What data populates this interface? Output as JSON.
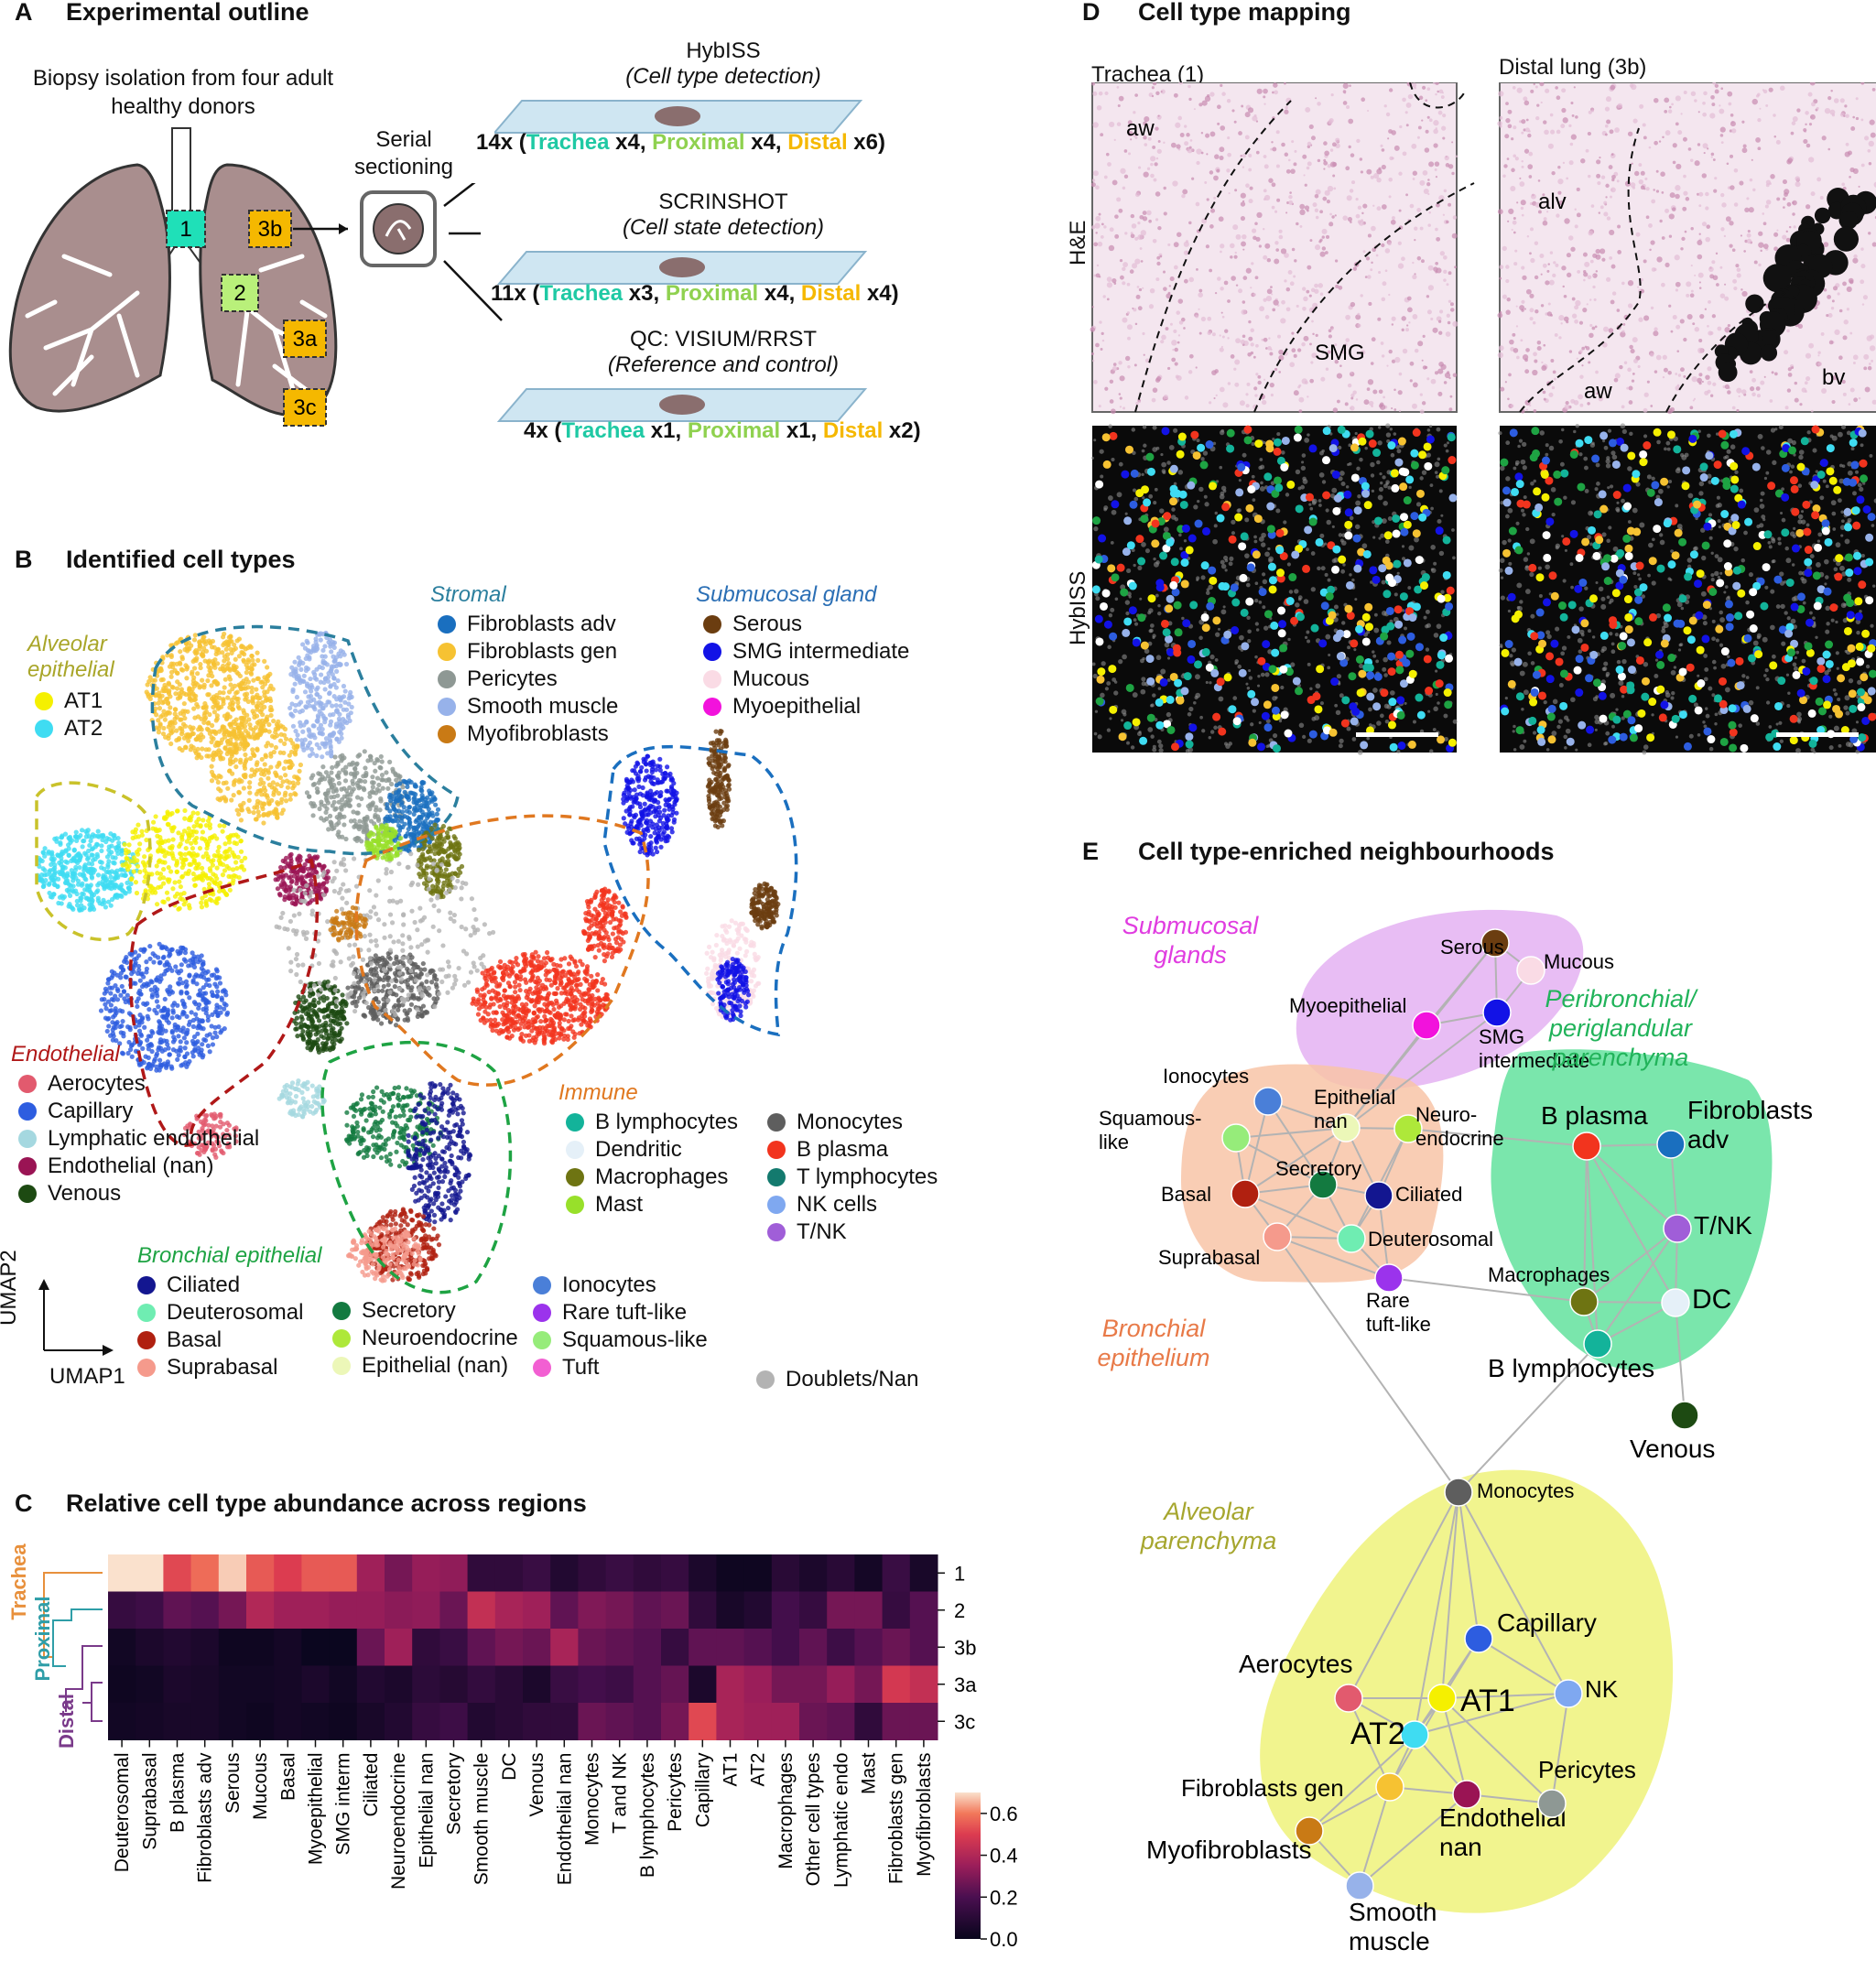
{
  "panelA": {
    "letter": "A",
    "title": "Experimental outline",
    "biopsy": [
      "Biopsy isolation from four adult",
      "healthy donors"
    ],
    "serial": [
      "Serial",
      "sectioning"
    ],
    "regions": [
      "1",
      "3b",
      "2",
      "3a",
      "3c"
    ],
    "methods": [
      {
        "name": "HybISS",
        "sub": "(Cell type detection)",
        "count": "14x",
        "parts": [
          [
            "(",
            ""
          ],
          [
            "Trachea",
            "trachea"
          ],
          [
            " x4, ",
            ""
          ],
          [
            "Proximal",
            "proximal"
          ],
          [
            " x4, ",
            ""
          ],
          [
            "Distal",
            "distal"
          ],
          [
            " x6)",
            ""
          ]
        ]
      },
      {
        "name": "SCRINSHOT",
        "sub": "(Cell state detection)",
        "count": "11x",
        "parts": [
          [
            "(",
            ""
          ],
          [
            "Trachea",
            "trachea"
          ],
          [
            " x3, ",
            ""
          ],
          [
            "Proximal",
            "proximal"
          ],
          [
            " x4, ",
            ""
          ],
          [
            "Distal",
            "distal"
          ],
          [
            " x4)",
            ""
          ]
        ]
      },
      {
        "name": "QC: VISIUM/RRST",
        "sub": "(Reference and control)",
        "count": "4x",
        "parts": [
          [
            "(",
            ""
          ],
          [
            "Trachea",
            "trachea"
          ],
          [
            " x1, ",
            ""
          ],
          [
            "Proximal",
            "proximal"
          ],
          [
            " x1, ",
            ""
          ],
          [
            "Distal",
            "distal"
          ],
          [
            " x2)",
            ""
          ]
        ]
      }
    ]
  },
  "colors": {
    "trachea": "#1fc9a4",
    "proximal": "#8fd14f",
    "distal": "#f5b800"
  },
  "panelB": {
    "letter": "B",
    "title": "Identified cell types",
    "axes": {
      "y": "UMAP2",
      "x": "UMAP1"
    },
    "groups": [
      {
        "title": [
          "Alveolar",
          "epithelial"
        ],
        "color": "#a9a62a",
        "items": [
          [
            "AT1",
            "#f5f000"
          ],
          [
            "AT2",
            "#3fdcf2"
          ]
        ]
      },
      {
        "title": [
          "Stromal"
        ],
        "color": "#2b7f9e",
        "items": [
          [
            "Fibroblasts adv",
            "#1a6fbf"
          ],
          [
            "Fibroblasts gen",
            "#f6c232"
          ],
          [
            "Pericytes",
            "#8e9894"
          ],
          [
            "Smooth muscle",
            "#97b2ea"
          ],
          [
            "Myofibroblasts",
            "#c97a15"
          ]
        ]
      },
      {
        "title": [
          "Submucosal gland"
        ],
        "color": "#2b6fb5",
        "items": [
          [
            "Serous",
            "#6b3d10"
          ],
          [
            "SMG intermediate",
            "#1212e6"
          ],
          [
            "Mucous",
            "#fadbe5"
          ],
          [
            "Myoepithelial",
            "#f212dc"
          ]
        ]
      },
      {
        "title": [
          "Endothelial"
        ],
        "color": "#b01818",
        "items": [
          [
            "Aerocytes",
            "#e25a6e"
          ],
          [
            "Capillary",
            "#2d5de0"
          ],
          [
            "Lymphatic endothelial",
            "#a5d8e0"
          ],
          [
            "Endothelial (nan)",
            "#9a1454"
          ],
          [
            "Venous",
            "#1d4a12"
          ]
        ]
      },
      {
        "title": [
          "Immune"
        ],
        "color": "#e07820",
        "items": [
          [
            "B lymphocytes",
            "#13b39a"
          ],
          [
            "Dendritic",
            "#e5f0f8"
          ],
          [
            "Macrophages",
            "#6e7412"
          ],
          [
            "Mast",
            "#98e02a"
          ],
          [
            "Monocytes",
            "#5e5e5e"
          ],
          [
            "B plasma",
            "#f2341e"
          ],
          [
            "T lymphocytes",
            "#137a6e"
          ],
          [
            "NK cells",
            "#7fa8f0"
          ],
          [
            "T/NK",
            "#a05ed8"
          ]
        ]
      },
      {
        "title": [
          "Bronchial epithelial"
        ],
        "color": "#1ea343",
        "items": [
          [
            "Ciliated",
            "#131690"
          ],
          [
            "Deuterosomal",
            "#6fedb2"
          ],
          [
            "Basal",
            "#b02010"
          ],
          [
            "Suprabasal",
            "#f59a8c"
          ],
          [
            "Secretory",
            "#137a40"
          ],
          [
            "Neuroendocrine",
            "#aee83a"
          ],
          [
            "Epithelial (nan)",
            "#ecf7b8"
          ],
          [
            "Ionocytes",
            "#4a7fd8"
          ],
          [
            "Rare tuft-like",
            "#9b33ec"
          ],
          [
            "Squamous-like",
            "#96ec7a"
          ],
          [
            "Tuft",
            "#f25fd2"
          ]
        ]
      }
    ],
    "doublets": [
      "Doublets/Nan",
      "#b3b3b3"
    ]
  },
  "panelC": {
    "letter": "C",
    "title": "Relative cell type abundance across regions",
    "chart_data": {
      "type": "heatmap",
      "columns": [
        "Deuterosomal",
        "Suprabasal",
        "B plasma",
        "Fibroblasts adv",
        "Serous",
        "Mucous",
        "Basal",
        "Myoepithelial",
        "SMG interm",
        "Ciliated",
        "Neuroendocrine",
        "Epithelial nan",
        "Secretory",
        "Smooth muscle",
        "DC",
        "Venous",
        "Endothelial nan",
        "Monocytes",
        "T and NK",
        "B lymphocytes",
        "Pericytes",
        "Capillary",
        "AT1",
        "AT2",
        "Macrophages",
        "Other cell types",
        "Lymphatic endo",
        "Mast",
        "Fibroblasts gen",
        "Myofibroblasts"
      ],
      "rows": [
        "1",
        "2",
        "3b",
        "3a",
        "3c"
      ],
      "values": [
        [
          0.7,
          0.7,
          0.52,
          0.58,
          0.68,
          0.55,
          0.5,
          0.55,
          0.55,
          0.36,
          0.28,
          0.34,
          0.33,
          0.12,
          0.12,
          0.15,
          0.08,
          0.12,
          0.15,
          0.12,
          0.14,
          0.06,
          0.02,
          0.02,
          0.1,
          0.06,
          0.1,
          0.04,
          0.15,
          0.05
        ],
        [
          0.14,
          0.16,
          0.24,
          0.22,
          0.28,
          0.4,
          0.36,
          0.36,
          0.34,
          0.34,
          0.32,
          0.33,
          0.26,
          0.44,
          0.38,
          0.36,
          0.24,
          0.3,
          0.28,
          0.24,
          0.26,
          0.12,
          0.05,
          0.08,
          0.18,
          0.14,
          0.28,
          0.28,
          0.14,
          0.22
        ],
        [
          0.03,
          0.06,
          0.08,
          0.06,
          0.02,
          0.02,
          0.04,
          0.01,
          0.01,
          0.26,
          0.36,
          0.12,
          0.15,
          0.24,
          0.28,
          0.26,
          0.38,
          0.26,
          0.24,
          0.22,
          0.14,
          0.24,
          0.24,
          0.22,
          0.18,
          0.24,
          0.16,
          0.22,
          0.26,
          0.22
        ],
        [
          0.02,
          0.03,
          0.06,
          0.05,
          0.03,
          0.03,
          0.04,
          0.06,
          0.03,
          0.08,
          0.06,
          0.11,
          0.09,
          0.13,
          0.1,
          0.06,
          0.15,
          0.18,
          0.16,
          0.22,
          0.25,
          0.06,
          0.38,
          0.35,
          0.28,
          0.28,
          0.34,
          0.28,
          0.48,
          0.44
        ],
        [
          0.03,
          0.04,
          0.05,
          0.05,
          0.03,
          0.02,
          0.04,
          0.03,
          0.02,
          0.05,
          0.08,
          0.14,
          0.16,
          0.08,
          0.1,
          0.12,
          0.12,
          0.26,
          0.24,
          0.22,
          0.28,
          0.52,
          0.38,
          0.36,
          0.36,
          0.26,
          0.24,
          0.12,
          0.26,
          0.26
        ]
      ],
      "row_groups": [
        [
          "Trachea",
          "#e8903c"
        ],
        [
          "Proximal",
          "#2f9ea8"
        ],
        [
          "Distal",
          "#7a3a8a"
        ]
      ],
      "colorbar": {
        "ticks": [
          "0.6",
          "0.4",
          "0.2",
          "0.0"
        ],
        "range": [
          0,
          0.7
        ]
      }
    }
  },
  "panelD": {
    "letter": "D",
    "title": "Cell type mapping",
    "cols": [
      "Trachea (1)",
      "Distal lung (3b)"
    ],
    "rows": [
      "H&E",
      "HybISS"
    ],
    "annotations": [
      "aw",
      "SMG",
      "alv",
      "aw",
      "bv"
    ]
  },
  "panelE": {
    "letter": "E",
    "title": "Cell type-enriched neighbourhoods",
    "regions": [
      {
        "label": [
          "Submucosal",
          "glands"
        ],
        "fill": "#e4b1f2",
        "text": "#e03ce0"
      },
      {
        "label": [
          "Peribronchial/",
          "periglandular",
          "parenchyma"
        ],
        "fill": "#63e29d",
        "text": "#21b35a"
      },
      {
        "label": [
          "Bronchial",
          "epithelium"
        ],
        "fill": "#f8c4a7",
        "text": "#e87a48"
      },
      {
        "label": [
          "Alveolar",
          "parenchyma"
        ],
        "fill": "#eef27a",
        "text": "#a6a62e"
      }
    ],
    "nodes": [
      {
        "id": "serous",
        "label": [
          "Serous"
        ],
        "color": "#6b3d10"
      },
      {
        "id": "mucous",
        "label": [
          "Mucous"
        ],
        "color": "#fadbe5"
      },
      {
        "id": "myo",
        "label": [
          "Myoepithelial"
        ],
        "color": "#f212dc"
      },
      {
        "id": "smg",
        "label": [
          "SMG",
          "intermediate"
        ],
        "color": "#1212e6"
      },
      {
        "id": "iono",
        "label": [
          "Ionocytes"
        ],
        "color": "#4a7fd8"
      },
      {
        "id": "epinan",
        "label": [
          "Epithelial",
          "nan"
        ],
        "color": "#ecf7b8"
      },
      {
        "id": "squam",
        "label": [
          "Squamous-",
          "like"
        ],
        "color": "#96ec7a"
      },
      {
        "id": "neuro",
        "label": [
          "Neuro-",
          "endocrine"
        ],
        "color": "#aee83a"
      },
      {
        "id": "secr",
        "label": [
          "Secretory"
        ],
        "color": "#137a40"
      },
      {
        "id": "cil",
        "label": [
          "Ciliated"
        ],
        "color": "#131690"
      },
      {
        "id": "basal",
        "label": [
          "Basal"
        ],
        "color": "#b02010"
      },
      {
        "id": "deut",
        "label": [
          "Deuterosomal"
        ],
        "color": "#6fedb2"
      },
      {
        "id": "supra",
        "label": [
          "Suprabasal"
        ],
        "color": "#f59a8c"
      },
      {
        "id": "tuft",
        "label": [
          "Rare",
          "tuft-like"
        ],
        "color": "#9b33ec"
      },
      {
        "id": "bplas",
        "label": [
          "B plasma"
        ],
        "color": "#f2341e"
      },
      {
        "id": "fibadv",
        "label": [
          "Fibroblasts",
          "adv"
        ],
        "color": "#1a6fbf"
      },
      {
        "id": "tnk",
        "label": [
          "T/NK"
        ],
        "color": "#a05ed8"
      },
      {
        "id": "mac",
        "label": [
          "Macrophages"
        ],
        "color": "#6e7412"
      },
      {
        "id": "dc",
        "label": [
          "DC"
        ],
        "color": "#e5f0f8"
      },
      {
        "id": "blym",
        "label": [
          "B lymphocytes"
        ],
        "color": "#13b39a"
      },
      {
        "id": "ven",
        "label": [
          "Venous"
        ],
        "color": "#1d4a12"
      },
      {
        "id": "mono",
        "label": [
          "Monocytes"
        ],
        "color": "#5e5e5e"
      },
      {
        "id": "cap",
        "label": [
          "Capillary"
        ],
        "color": "#2d5de0"
      },
      {
        "id": "aero",
        "label": [
          "Aerocytes"
        ],
        "color": "#e25a6e"
      },
      {
        "id": "at1",
        "label": [
          "AT1"
        ],
        "color": "#f5f000"
      },
      {
        "id": "nk",
        "label": [
          "NK"
        ],
        "color": "#7fa8f0"
      },
      {
        "id": "at2",
        "label": [
          "AT2"
        ],
        "color": "#3fdcf2"
      },
      {
        "id": "fibgen",
        "label": [
          "Fibroblasts gen"
        ],
        "color": "#f6c232"
      },
      {
        "id": "endnan",
        "label": [
          "Endothelial",
          "nan"
        ],
        "color": "#9a1454"
      },
      {
        "id": "peri",
        "label": [
          "Pericytes"
        ],
        "color": "#8e9894"
      },
      {
        "id": "myof",
        "label": [
          "Myofibroblasts"
        ],
        "color": "#c97a15"
      },
      {
        "id": "smooth",
        "label": [
          "Smooth",
          "muscle"
        ],
        "color": "#97b2ea"
      }
    ],
    "edges": [
      [
        "serous",
        "mucous"
      ],
      [
        "serous",
        "myo"
      ],
      [
        "serous",
        "smg"
      ],
      [
        "mucous",
        "smg"
      ],
      [
        "myo",
        "smg"
      ],
      [
        "myo",
        "epinan"
      ],
      [
        "smg",
        "epinan"
      ],
      [
        "serous",
        "epinan"
      ],
      [
        "epinan",
        "iono"
      ],
      [
        "epinan",
        "squam"
      ],
      [
        "epinan",
        "neuro"
      ],
      [
        "epinan",
        "secr"
      ],
      [
        "epinan",
        "cil"
      ],
      [
        "epinan",
        "basal"
      ],
      [
        "iono",
        "secr"
      ],
      [
        "squam",
        "secr"
      ],
      [
        "squam",
        "basal"
      ],
      [
        "neuro",
        "cil"
      ],
      [
        "neuro",
        "deut"
      ],
      [
        "secr",
        "cil"
      ],
      [
        "secr",
        "basal"
      ],
      [
        "secr",
        "deut"
      ],
      [
        "secr",
        "supra"
      ],
      [
        "basal",
        "supra"
      ],
      [
        "basal",
        "deut"
      ],
      [
        "cil",
        "deut"
      ],
      [
        "deut",
        "supra"
      ],
      [
        "deut",
        "tuft"
      ],
      [
        "supra",
        "tuft"
      ],
      [
        "cil",
        "tuft"
      ],
      [
        "iono",
        "basal"
      ],
      [
        "supra",
        "mono"
      ],
      [
        "tuft",
        "mac"
      ],
      [
        "neuro",
        "bplas"
      ],
      [
        "bplas",
        "fibadv"
      ],
      [
        "bplas",
        "tnk"
      ],
      [
        "bplas",
        "mac"
      ],
      [
        "bplas",
        "dc"
      ],
      [
        "bplas",
        "blym"
      ],
      [
        "fibadv",
        "tnk"
      ],
      [
        "tnk",
        "mac"
      ],
      [
        "tnk",
        "dc"
      ],
      [
        "tnk",
        "blym"
      ],
      [
        "mac",
        "dc"
      ],
      [
        "mac",
        "blym"
      ],
      [
        "dc",
        "blym"
      ],
      [
        "dc",
        "ven"
      ],
      [
        "blym",
        "mono"
      ],
      [
        "mono",
        "at1"
      ],
      [
        "mono",
        "cap"
      ],
      [
        "mono",
        "at2"
      ],
      [
        "mono",
        "aero"
      ],
      [
        "mono",
        "nk"
      ],
      [
        "cap",
        "at1"
      ],
      [
        "cap",
        "nk"
      ],
      [
        "cap",
        "at2"
      ],
      [
        "aero",
        "at1"
      ],
      [
        "aero",
        "at2"
      ],
      [
        "aero",
        "fibgen"
      ],
      [
        "at1",
        "at2"
      ],
      [
        "at1",
        "nk"
      ],
      [
        "at1",
        "fibgen"
      ],
      [
        "at1",
        "endnan"
      ],
      [
        "at1",
        "peri"
      ],
      [
        "nk",
        "peri"
      ],
      [
        "nk",
        "at2"
      ],
      [
        "at2",
        "fibgen"
      ],
      [
        "at2",
        "endnan"
      ],
      [
        "at2",
        "myof"
      ],
      [
        "fibgen",
        "myof"
      ],
      [
        "fibgen",
        "smooth"
      ],
      [
        "fibgen",
        "endnan"
      ],
      [
        "endnan",
        "smooth"
      ],
      [
        "myof",
        "smooth"
      ],
      [
        "endnan",
        "peri"
      ]
    ]
  }
}
